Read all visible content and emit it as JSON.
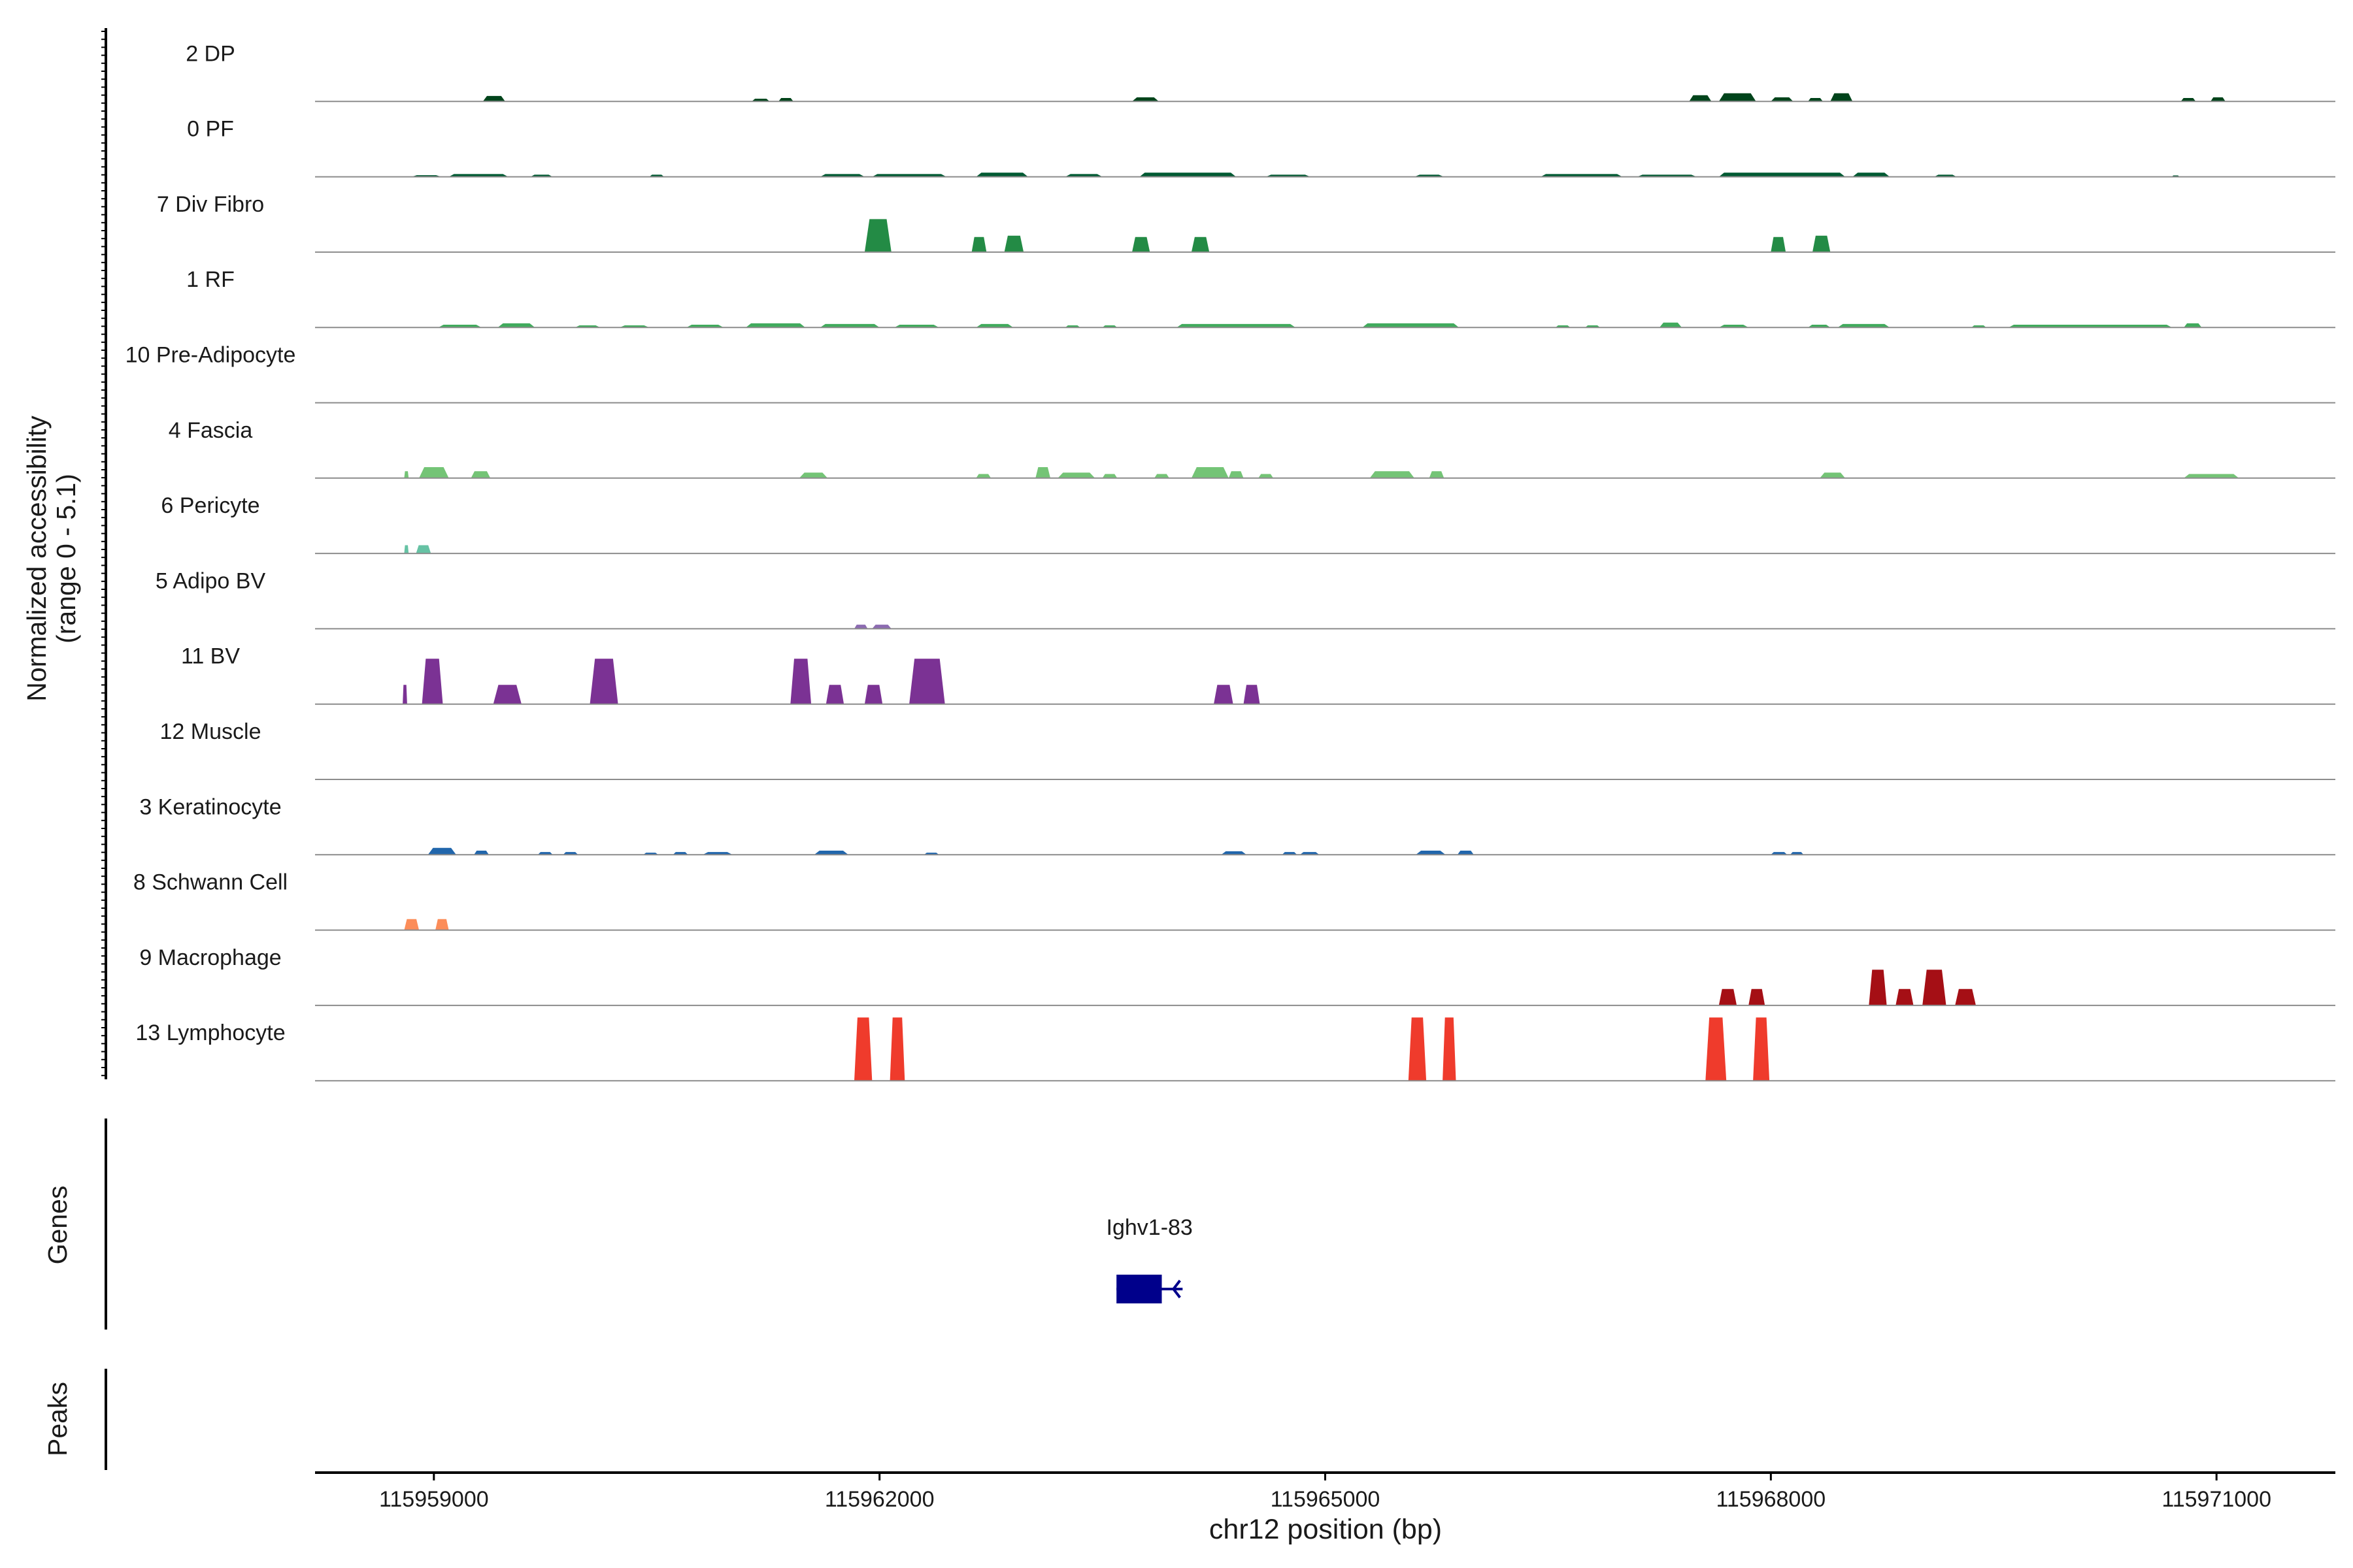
{
  "chart_data": {
    "type": "area",
    "title": "",
    "ylabel_line1": "Normalized accessibility",
    "ylabel_line2": "(range 0 - 5.1)",
    "xlabel": "chr12 position (bp)",
    "xlim": [
      115958200,
      115971800
    ],
    "ylim": [
      0,
      5.1
    ],
    "x_ticks": [
      {
        "value": 115959000,
        "label": "115959000"
      },
      {
        "value": 115962000,
        "label": "115962000"
      },
      {
        "value": 115965000,
        "label": "115965000"
      },
      {
        "value": 115968000,
        "label": "115968000"
      },
      {
        "value": 115971000,
        "label": "115971000"
      }
    ],
    "tracks": [
      {
        "name": "2 DP",
        "color": "#00441b",
        "peaks": [
          [
            115959330,
            115959480,
            0.4
          ],
          [
            115961140,
            115961260,
            0.2
          ],
          [
            115961320,
            115961420,
            0.25
          ],
          [
            115963700,
            115963880,
            0.3
          ],
          [
            115967450,
            115967600,
            0.45
          ],
          [
            115967650,
            115967900,
            0.6
          ],
          [
            115968000,
            115968150,
            0.3
          ],
          [
            115968250,
            115968350,
            0.25
          ],
          [
            115968400,
            115968550,
            0.6
          ],
          [
            115970760,
            115970860,
            0.25
          ],
          [
            115970960,
            115971060,
            0.3
          ]
        ]
      },
      {
        "name": "0 PF",
        "color": "#005a32",
        "peaks": [
          [
            115958850,
            115959050,
            0.12
          ],
          [
            115959100,
            115959500,
            0.2
          ],
          [
            115959650,
            115959800,
            0.15
          ],
          [
            115960450,
            115960550,
            0.15
          ],
          [
            115961600,
            115961900,
            0.2
          ],
          [
            115961950,
            115962450,
            0.2
          ],
          [
            115962650,
            115963000,
            0.3
          ],
          [
            115963250,
            115963500,
            0.2
          ],
          [
            115963750,
            115964400,
            0.3
          ],
          [
            115964600,
            115964900,
            0.15
          ],
          [
            115965600,
            115965800,
            0.15
          ],
          [
            115966450,
            115967000,
            0.2
          ],
          [
            115967100,
            115967500,
            0.15
          ],
          [
            115967650,
            115968500,
            0.3
          ],
          [
            115968550,
            115968800,
            0.3
          ],
          [
            115969100,
            115969250,
            0.15
          ],
          [
            115970700,
            115970750,
            0.1
          ]
        ]
      },
      {
        "name": "7 Div Fibro",
        "color": "#238b45",
        "peaks": [
          [
            115961900,
            115962080,
            2.4
          ],
          [
            115962620,
            115962720,
            1.1
          ],
          [
            115962840,
            115962970,
            1.2
          ],
          [
            115963700,
            115963820,
            1.1
          ],
          [
            115964100,
            115964220,
            1.1
          ],
          [
            115968000,
            115968100,
            1.1
          ],
          [
            115968280,
            115968400,
            1.2
          ]
        ]
      },
      {
        "name": "1 RF",
        "color": "#41ab5d",
        "peaks": [
          [
            115959030,
            115959320,
            0.2
          ],
          [
            115959430,
            115959680,
            0.3
          ],
          [
            115959950,
            115960120,
            0.15
          ],
          [
            115960250,
            115960450,
            0.15
          ],
          [
            115960700,
            115960950,
            0.2
          ],
          [
            115961100,
            115961500,
            0.3
          ],
          [
            115961600,
            115962000,
            0.25
          ],
          [
            115962100,
            115962400,
            0.2
          ],
          [
            115962650,
            115962900,
            0.25
          ],
          [
            115963250,
            115963350,
            0.15
          ],
          [
            115963500,
            115963600,
            0.15
          ],
          [
            115964000,
            115964800,
            0.25
          ],
          [
            115965250,
            115965900,
            0.3
          ],
          [
            115966550,
            115966650,
            0.15
          ],
          [
            115966750,
            115966850,
            0.15
          ],
          [
            115967250,
            115967400,
            0.35
          ],
          [
            115967650,
            115967850,
            0.2
          ],
          [
            115968250,
            115968400,
            0.2
          ],
          [
            115968450,
            115968800,
            0.25
          ],
          [
            115969350,
            115969450,
            0.15
          ],
          [
            115969600,
            115970700,
            0.2
          ],
          [
            115970780,
            115970900,
            0.3
          ]
        ]
      },
      {
        "name": "10 Pre-Adipocyte",
        "color": "#74c476",
        "peaks": []
      },
      {
        "name": "4 Fascia",
        "color": "#74c476",
        "peaks": [
          [
            115958800,
            115958830,
            0.5
          ],
          [
            115958900,
            115959100,
            0.8
          ],
          [
            115959250,
            115959380,
            0.5
          ],
          [
            115961460,
            115961650,
            0.4
          ],
          [
            115962650,
            115962750,
            0.3
          ],
          [
            115963050,
            115963150,
            0.8
          ],
          [
            115963200,
            115963450,
            0.4
          ],
          [
            115963500,
            115963600,
            0.3
          ],
          [
            115963850,
            115963950,
            0.3
          ],
          [
            115964100,
            115964350,
            0.8
          ],
          [
            115964350,
            115964450,
            0.5
          ],
          [
            115964550,
            115964650,
            0.3
          ],
          [
            115965300,
            115965600,
            0.5
          ],
          [
            115965700,
            115965800,
            0.5
          ],
          [
            115968330,
            115968500,
            0.4
          ],
          [
            115970780,
            115971150,
            0.3
          ]
        ]
      },
      {
        "name": "6 Pericyte",
        "color": "#66c2a4",
        "peaks": [
          [
            115958800,
            115958830,
            0.6
          ],
          [
            115958880,
            115958980,
            0.6
          ]
        ]
      },
      {
        "name": "5 Adipo BV",
        "color": "#8c6bb1",
        "peaks": [
          [
            115961830,
            115961920,
            0.3
          ],
          [
            115961950,
            115962080,
            0.3
          ]
        ]
      },
      {
        "name": "11 BV",
        "color": "#7b3294",
        "peaks": [
          [
            115958790,
            115958820,
            1.4
          ],
          [
            115958920,
            115959060,
            3.3
          ],
          [
            115959400,
            115959590,
            1.4
          ],
          [
            115960050,
            115960240,
            3.3
          ],
          [
            115961400,
            115961540,
            3.3
          ],
          [
            115961640,
            115961760,
            1.4
          ],
          [
            115961900,
            115962020,
            1.4
          ],
          [
            115962200,
            115962440,
            3.3
          ],
          [
            115964250,
            115964380,
            1.4
          ],
          [
            115964450,
            115964560,
            1.4
          ]
        ]
      },
      {
        "name": "12 Muscle",
        "color": "#9e9ac8",
        "peaks": []
      },
      {
        "name": "3 Keratinocyte",
        "color": "#2166ac",
        "peaks": [
          [
            115958960,
            115959150,
            0.5
          ],
          [
            115959270,
            115959370,
            0.3
          ],
          [
            115959700,
            115959800,
            0.2
          ],
          [
            115959870,
            115959970,
            0.2
          ],
          [
            115960410,
            115960510,
            0.15
          ],
          [
            115960610,
            115960710,
            0.2
          ],
          [
            115960810,
            115961010,
            0.2
          ],
          [
            115961560,
            115961790,
            0.3
          ],
          [
            115962300,
            115962400,
            0.15
          ],
          [
            115964300,
            115964470,
            0.25
          ],
          [
            115964710,
            115964810,
            0.2
          ],
          [
            115964830,
            115964960,
            0.2
          ],
          [
            115965610,
            115965810,
            0.3
          ],
          [
            115965890,
            115966000,
            0.3
          ],
          [
            115968000,
            115968110,
            0.2
          ],
          [
            115968130,
            115968220,
            0.2
          ]
        ]
      },
      {
        "name": "8 Schwann Cell",
        "color": "#fc8d59",
        "peaks": [
          [
            115958800,
            115958900,
            0.8
          ],
          [
            115959010,
            115959100,
            0.8
          ]
        ]
      },
      {
        "name": "9 Macrophage",
        "color": "#a50f15",
        "peaks": [
          [
            115967650,
            115967770,
            1.2
          ],
          [
            115967850,
            115967960,
            1.2
          ],
          [
            115968660,
            115968780,
            2.6
          ],
          [
            115968840,
            115968960,
            1.2
          ],
          [
            115969020,
            115969180,
            2.6
          ],
          [
            115969240,
            115969380,
            1.2
          ]
        ]
      },
      {
        "name": "13 Lymphocyte",
        "color": "#ef3b2c",
        "peaks": [
          [
            115961830,
            115961950,
            4.6
          ],
          [
            115962070,
            115962170,
            4.6
          ],
          [
            115965560,
            115965680,
            4.6
          ],
          [
            115965790,
            115965880,
            4.6
          ],
          [
            115967560,
            115967700,
            4.6
          ],
          [
            115967880,
            115967990,
            4.6
          ]
        ]
      }
    ],
    "genes_label": "Genes",
    "gene": {
      "name": "Ighv1-83",
      "start": 115963595,
      "end": 115964040,
      "exon_end": 115963900,
      "color": "#00008b"
    },
    "peaks_label": "Peaks"
  }
}
